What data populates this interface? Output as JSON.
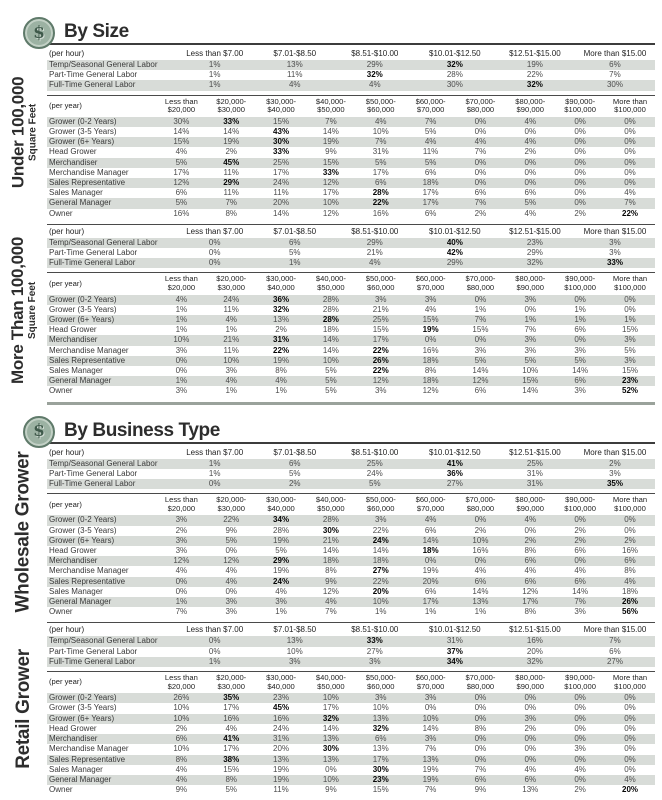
{
  "labels": {
    "per_hour": "(per hour)",
    "per_year": "(per year)",
    "coin": "$"
  },
  "style": {
    "stripe_color": "#d8dcd8",
    "coin_color": "#9cb2a3",
    "rule_color": "#3c3c3c",
    "endbar_color": "#9aa29b"
  },
  "columns": {
    "hourly": [
      "Less than $7.00",
      "$7.01-$8.50",
      "$8.51-$10.00",
      "$10.01-$12.50",
      "$12.51-$15.00",
      "More than $15.00"
    ],
    "yearly": [
      "Less than\n$20,000",
      "$20,000-\n$30,000",
      "$30,000-\n$40,000",
      "$40,000-\n$50,000",
      "$50,000-\n$60,000",
      "$60,000-\n$70,000",
      "$70,000-\n$80,000",
      "$80,000-\n$90,000",
      "$90,000-\n$100,000",
      "More than\n$100,000"
    ]
  },
  "roles": {
    "hourly": [
      "Temp/Seasonal General Labor",
      "Part-Time General Labor",
      "Full-Time General Labor"
    ],
    "yearly": [
      "Grower (0-2 Years)",
      "Grower (3-5 Years)",
      "Grower (6+ Years)",
      "Head Grower",
      "Merchandiser",
      "Merchandise Manager",
      "Sales Representative",
      "Sales Manager",
      "General Manager",
      "Owner"
    ]
  },
  "sections": [
    {
      "title": "By Size",
      "groups": [
        {
          "label_big": "Under 100,000",
          "label_small": "Square Feet",
          "hourly": [
            {
              "values": [
                "1%",
                "13%",
                "29%",
                "32%",
                "19%",
                "6%"
              ],
              "bold": [
                3
              ]
            },
            {
              "values": [
                "1%",
                "11%",
                "32%",
                "28%",
                "22%",
                "7%"
              ],
              "bold": [
                2
              ]
            },
            {
              "values": [
                "1%",
                "4%",
                "4%",
                "30%",
                "32%",
                "30%"
              ],
              "bold": [
                4
              ]
            }
          ],
          "yearly": [
            {
              "values": [
                "30%",
                "33%",
                "15%",
                "7%",
                "4%",
                "7%",
                "0%",
                "4%",
                "0%",
                "0%"
              ],
              "bold": [
                1
              ]
            },
            {
              "values": [
                "14%",
                "14%",
                "43%",
                "14%",
                "10%",
                "5%",
                "0%",
                "0%",
                "0%",
                "0%"
              ],
              "bold": [
                2
              ]
            },
            {
              "values": [
                "15%",
                "19%",
                "30%",
                "19%",
                "7%",
                "4%",
                "4%",
                "4%",
                "0%",
                "0%"
              ],
              "bold": [
                2
              ]
            },
            {
              "values": [
                "4%",
                "2%",
                "33%",
                "9%",
                "31%",
                "11%",
                "7%",
                "2%",
                "0%",
                "0%"
              ],
              "bold": [
                2
              ]
            },
            {
              "values": [
                "5%",
                "45%",
                "25%",
                "15%",
                "5%",
                "5%",
                "0%",
                "0%",
                "0%",
                "0%"
              ],
              "bold": [
                1
              ]
            },
            {
              "values": [
                "17%",
                "11%",
                "17%",
                "33%",
                "17%",
                "6%",
                "0%",
                "0%",
                "0%",
                "0%"
              ],
              "bold": [
                3
              ]
            },
            {
              "values": [
                "12%",
                "29%",
                "24%",
                "12%",
                "6%",
                "18%",
                "0%",
                "0%",
                "0%",
                "0%"
              ],
              "bold": [
                1
              ]
            },
            {
              "values": [
                "6%",
                "11%",
                "11%",
                "17%",
                "28%",
                "17%",
                "6%",
                "6%",
                "0%",
                "4%"
              ],
              "bold": [
                4
              ]
            },
            {
              "values": [
                "5%",
                "7%",
                "20%",
                "10%",
                "22%",
                "17%",
                "7%",
                "5%",
                "0%",
                "7%"
              ],
              "bold": [
                4
              ]
            },
            {
              "values": [
                "16%",
                "8%",
                "14%",
                "12%",
                "16%",
                "6%",
                "2%",
                "4%",
                "2%",
                "22%"
              ],
              "bold": [
                9
              ]
            }
          ]
        },
        {
          "label_big": "More Than 100,000",
          "label_small": "Square Feet",
          "hourly": [
            {
              "values": [
                "0%",
                "6%",
                "29%",
                "40%",
                "23%",
                "3%"
              ],
              "bold": [
                3
              ]
            },
            {
              "values": [
                "0%",
                "5%",
                "21%",
                "42%",
                "29%",
                "3%"
              ],
              "bold": [
                3
              ]
            },
            {
              "values": [
                "0%",
                "1%",
                "4%",
                "29%",
                "32%",
                "33%"
              ],
              "bold": [
                5
              ]
            }
          ],
          "yearly": [
            {
              "values": [
                "4%",
                "24%",
                "36%",
                "28%",
                "3%",
                "3%",
                "0%",
                "3%",
                "0%",
                "0%"
              ],
              "bold": [
                2
              ]
            },
            {
              "values": [
                "1%",
                "11%",
                "32%",
                "28%",
                "21%",
                "4%",
                "1%",
                "0%",
                "1%",
                "0%"
              ],
              "bold": [
                2
              ]
            },
            {
              "values": [
                "1%",
                "4%",
                "13%",
                "28%",
                "25%",
                "15%",
                "7%",
                "1%",
                "1%",
                "1%"
              ],
              "bold": [
                3
              ]
            },
            {
              "values": [
                "1%",
                "1%",
                "2%",
                "18%",
                "15%",
                "19%",
                "15%",
                "7%",
                "6%",
                "15%"
              ],
              "bold": [
                5
              ]
            },
            {
              "values": [
                "10%",
                "21%",
                "31%",
                "14%",
                "17%",
                "0%",
                "0%",
                "3%",
                "0%",
                "3%"
              ],
              "bold": [
                2
              ]
            },
            {
              "values": [
                "3%",
                "11%",
                "22%",
                "14%",
                "22%",
                "16%",
                "3%",
                "3%",
                "3%",
                "5%"
              ],
              "bold": [
                2,
                4
              ]
            },
            {
              "values": [
                "0%",
                "10%",
                "19%",
                "10%",
                "26%",
                "18%",
                "5%",
                "5%",
                "5%",
                "3%"
              ],
              "bold": [
                4
              ]
            },
            {
              "values": [
                "0%",
                "3%",
                "8%",
                "5%",
                "22%",
                "8%",
                "14%",
                "10%",
                "14%",
                "15%"
              ],
              "bold": [
                4
              ]
            },
            {
              "values": [
                "1%",
                "4%",
                "4%",
                "5%",
                "12%",
                "18%",
                "12%",
                "15%",
                "6%",
                "23%"
              ],
              "bold": [
                9
              ]
            },
            {
              "values": [
                "3%",
                "1%",
                "1%",
                "5%",
                "3%",
                "12%",
                "6%",
                "14%",
                "3%",
                "52%"
              ],
              "bold": [
                9
              ]
            }
          ]
        }
      ]
    },
    {
      "title": "By Business Type",
      "groups": [
        {
          "label_big": "Wholesale Grower",
          "label_small": "",
          "hourly": [
            {
              "values": [
                "1%",
                "6%",
                "25%",
                "41%",
                "25%",
                "2%"
              ],
              "bold": [
                3
              ]
            },
            {
              "values": [
                "1%",
                "5%",
                "24%",
                "36%",
                "31%",
                "3%"
              ],
              "bold": [
                3
              ]
            },
            {
              "values": [
                "0%",
                "2%",
                "5%",
                "27%",
                "31%",
                "35%"
              ],
              "bold": [
                5
              ]
            }
          ],
          "yearly": [
            {
              "values": [
                "3%",
                "22%",
                "34%",
                "28%",
                "3%",
                "4%",
                "0%",
                "4%",
                "0%",
                "0%"
              ],
              "bold": [
                2
              ]
            },
            {
              "values": [
                "2%",
                "9%",
                "28%",
                "30%",
                "22%",
                "6%",
                "2%",
                "0%",
                "2%",
                "0%"
              ],
              "bold": [
                3
              ]
            },
            {
              "values": [
                "3%",
                "5%",
                "19%",
                "21%",
                "24%",
                "14%",
                "10%",
                "2%",
                "2%",
                "2%"
              ],
              "bold": [
                4
              ]
            },
            {
              "values": [
                "3%",
                "0%",
                "5%",
                "14%",
                "14%",
                "18%",
                "16%",
                "8%",
                "6%",
                "16%"
              ],
              "bold": [
                5
              ]
            },
            {
              "values": [
                "12%",
                "12%",
                "29%",
                "18%",
                "18%",
                "0%",
                "0%",
                "6%",
                "0%",
                "6%"
              ],
              "bold": [
                2
              ]
            },
            {
              "values": [
                "4%",
                "4%",
                "19%",
                "8%",
                "27%",
                "19%",
                "4%",
                "4%",
                "4%",
                "8%"
              ],
              "bold": [
                4
              ]
            },
            {
              "values": [
                "0%",
                "4%",
                "24%",
                "9%",
                "22%",
                "20%",
                "6%",
                "6%",
                "6%",
                "4%"
              ],
              "bold": [
                2
              ]
            },
            {
              "values": [
                "0%",
                "0%",
                "4%",
                "12%",
                "20%",
                "6%",
                "14%",
                "12%",
                "14%",
                "18%"
              ],
              "bold": [
                4
              ]
            },
            {
              "values": [
                "1%",
                "3%",
                "3%",
                "4%",
                "10%",
                "17%",
                "13%",
                "17%",
                "7%",
                "26%"
              ],
              "bold": [
                9
              ]
            },
            {
              "values": [
                "7%",
                "3%",
                "1%",
                "7%",
                "1%",
                "1%",
                "1%",
                "8%",
                "3%",
                "56%"
              ],
              "bold": [
                9
              ]
            }
          ]
        },
        {
          "label_big": "Retail Grower",
          "label_small": "",
          "hourly": [
            {
              "values": [
                "0%",
                "13%",
                "33%",
                "31%",
                "16%",
                "7%"
              ],
              "bold": [
                2
              ]
            },
            {
              "values": [
                "0%",
                "10%",
                "27%",
                "37%",
                "20%",
                "6%"
              ],
              "bold": [
                3
              ]
            },
            {
              "values": [
                "1%",
                "3%",
                "3%",
                "34%",
                "32%",
                "27%"
              ],
              "bold": [
                3
              ]
            }
          ],
          "yearly": [
            {
              "values": [
                "26%",
                "35%",
                "23%",
                "10%",
                "3%",
                "3%",
                "0%",
                "0%",
                "0%",
                "0%"
              ],
              "bold": [
                1
              ]
            },
            {
              "values": [
                "10%",
                "17%",
                "45%",
                "17%",
                "10%",
                "0%",
                "0%",
                "0%",
                "0%",
                "0%"
              ],
              "bold": [
                2
              ]
            },
            {
              "values": [
                "10%",
                "16%",
                "16%",
                "32%",
                "13%",
                "10%",
                "0%",
                "3%",
                "0%",
                "0%"
              ],
              "bold": [
                3
              ]
            },
            {
              "values": [
                "2%",
                "4%",
                "24%",
                "14%",
                "32%",
                "14%",
                "8%",
                "2%",
                "0%",
                "0%"
              ],
              "bold": [
                4
              ]
            },
            {
              "values": [
                "6%",
                "41%",
                "31%",
                "13%",
                "6%",
                "3%",
                "0%",
                "0%",
                "0%",
                "0%"
              ],
              "bold": [
                1
              ]
            },
            {
              "values": [
                "10%",
                "17%",
                "20%",
                "30%",
                "13%",
                "7%",
                "0%",
                "0%",
                "3%",
                "0%"
              ],
              "bold": [
                3
              ]
            },
            {
              "values": [
                "8%",
                "38%",
                "13%",
                "13%",
                "17%",
                "13%",
                "0%",
                "0%",
                "0%",
                "0%"
              ],
              "bold": [
                1
              ]
            },
            {
              "values": [
                "4%",
                "15%",
                "19%",
                "0%",
                "30%",
                "19%",
                "7%",
                "4%",
                "4%",
                "0%"
              ],
              "bold": [
                4
              ]
            },
            {
              "values": [
                "4%",
                "8%",
                "19%",
                "10%",
                "23%",
                "19%",
                "6%",
                "6%",
                "0%",
                "4%"
              ],
              "bold": [
                4
              ]
            },
            {
              "values": [
                "9%",
                "5%",
                "11%",
                "9%",
                "15%",
                "7%",
                "9%",
                "13%",
                "2%",
                "20%"
              ],
              "bold": [
                9
              ]
            }
          ]
        }
      ]
    }
  ]
}
